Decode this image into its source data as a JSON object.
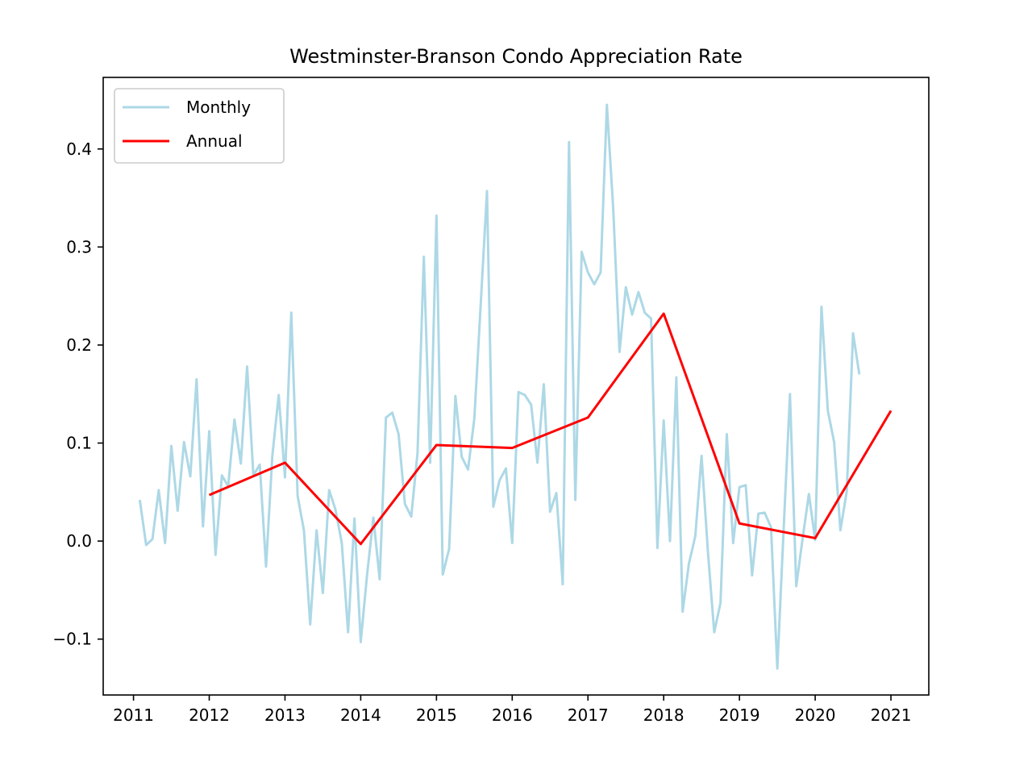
{
  "chart_data": {
    "type": "line",
    "title": "Westminster-Branson Condo Appreciation Rate",
    "xlabel": "",
    "ylabel": "",
    "xlim": [
      2010.6,
      2021.5
    ],
    "ylim": [
      -0.157,
      0.473
    ],
    "x_ticks": [
      2011,
      2012,
      2013,
      2014,
      2015,
      2016,
      2017,
      2018,
      2019,
      2020,
      2021
    ],
    "x_tick_labels": [
      "2011",
      "2012",
      "2013",
      "2014",
      "2015",
      "2016",
      "2017",
      "2018",
      "2019",
      "2020",
      "2021"
    ],
    "y_ticks": [
      -0.1,
      0.0,
      0.1,
      0.2,
      0.3,
      0.4
    ],
    "y_tick_labels": [
      "−0.1",
      "0.0",
      "0.1",
      "0.2",
      "0.3",
      "0.4"
    ],
    "grid": false,
    "legend": "top-left",
    "series": [
      {
        "name": "Monthly",
        "color": "#add8e6",
        "x": [
          2011.083,
          2011.167,
          2011.25,
          2011.333,
          2011.417,
          2011.5,
          2011.583,
          2011.667,
          2011.75,
          2011.833,
          2011.917,
          2012.0,
          2012.083,
          2012.167,
          2012.25,
          2012.333,
          2012.417,
          2012.5,
          2012.583,
          2012.667,
          2012.75,
          2012.833,
          2012.917,
          2013.0,
          2013.083,
          2013.167,
          2013.25,
          2013.333,
          2013.417,
          2013.5,
          2013.583,
          2013.667,
          2013.75,
          2013.833,
          2013.917,
          2014.0,
          2014.083,
          2014.167,
          2014.25,
          2014.333,
          2014.417,
          2014.5,
          2014.583,
          2014.667,
          2014.75,
          2014.833,
          2014.917,
          2015.0,
          2015.083,
          2015.167,
          2015.25,
          2015.333,
          2015.417,
          2015.5,
          2015.583,
          2015.667,
          2015.75,
          2015.833,
          2015.917,
          2016.0,
          2016.083,
          2016.167,
          2016.25,
          2016.333,
          2016.417,
          2016.5,
          2016.583,
          2016.667,
          2016.75,
          2016.833,
          2016.917,
          2017.0,
          2017.083,
          2017.167,
          2017.25,
          2017.333,
          2017.417,
          2017.5,
          2017.583,
          2017.667,
          2017.75,
          2017.833,
          2017.917,
          2018.0,
          2018.083,
          2018.167,
          2018.25,
          2018.333,
          2018.417,
          2018.5,
          2018.583,
          2018.667,
          2018.75,
          2018.833,
          2018.917,
          2019.0,
          2019.083,
          2019.167,
          2019.25,
          2019.333,
          2019.417,
          2019.5,
          2019.583,
          2019.667,
          2019.75,
          2019.833,
          2019.917,
          2020.0,
          2020.083,
          2020.167,
          2020.25,
          2020.333,
          2020.417,
          2020.5,
          2020.583
        ],
        "y": [
          0.042,
          -0.004,
          0.002,
          0.052,
          -0.002,
          0.097,
          0.031,
          0.101,
          0.066,
          0.165,
          0.015,
          0.112,
          -0.014,
          0.067,
          0.056,
          0.124,
          0.079,
          0.178,
          0.067,
          0.078,
          -0.026,
          0.087,
          0.149,
          0.065,
          0.233,
          0.046,
          0.011,
          -0.085,
          0.011,
          -0.053,
          0.052,
          0.032,
          -0.002,
          -0.093,
          0.023,
          -0.103,
          -0.035,
          0.024,
          -0.039,
          0.126,
          0.131,
          0.109,
          0.038,
          0.025,
          0.09,
          0.29,
          0.08,
          0.332,
          -0.034,
          -0.008,
          0.148,
          0.086,
          0.073,
          0.125,
          0.24,
          0.357,
          0.035,
          0.062,
          0.074,
          -0.002,
          0.152,
          0.149,
          0.139,
          0.08,
          0.16,
          0.03,
          0.049,
          -0.044,
          0.407,
          0.042,
          0.295,
          0.274,
          0.262,
          0.274,
          0.445,
          0.34,
          0.193,
          0.259,
          0.231,
          0.254,
          0.233,
          0.227,
          -0.007,
          0.123,
          0.0,
          0.167,
          -0.072,
          -0.023,
          0.005,
          0.087,
          -0.01,
          -0.093,
          -0.063,
          0.109,
          -0.002,
          0.055,
          0.057,
          -0.035,
          0.028,
          0.029,
          0.014,
          -0.13,
          0.011,
          0.15,
          -0.046,
          0.002,
          0.048,
          0.001,
          0.239,
          0.133,
          0.101,
          0.011,
          0.051,
          0.212,
          0.17
        ]
      },
      {
        "name": "Annual",
        "color": "#ff0000",
        "x": [
          2012,
          2013,
          2014,
          2015,
          2016,
          2017,
          2018,
          2019,
          2020,
          2021
        ],
        "y": [
          0.047,
          0.08,
          -0.003,
          0.098,
          0.095,
          0.126,
          0.232,
          0.018,
          0.003,
          0.133
        ]
      }
    ]
  }
}
